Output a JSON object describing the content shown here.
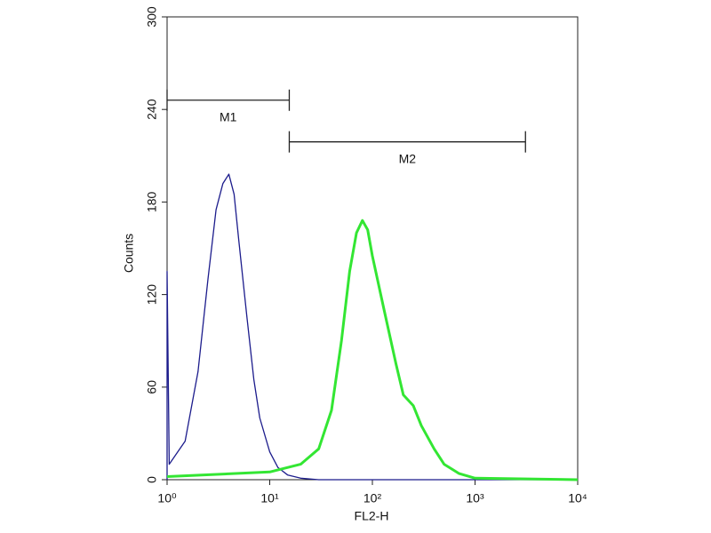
{
  "chart_data": {
    "type": "line",
    "xlabel": "FL2-H",
    "ylabel": "Counts",
    "xscale": "log",
    "xlim": [
      1,
      10000
    ],
    "ylim": [
      0,
      300
    ],
    "xticks": [
      {
        "value": 1,
        "label": "10⁰"
      },
      {
        "value": 10,
        "label": "10¹"
      },
      {
        "value": 100,
        "label": "10²"
      },
      {
        "value": 1000,
        "label": "10³"
      },
      {
        "value": 10000,
        "label": "10⁴"
      }
    ],
    "yticks": [
      0,
      60,
      120,
      180,
      240,
      300
    ],
    "series": [
      {
        "color": "#1c1c8c",
        "x": [
          1,
          1,
          1.05,
          1.5,
          2,
          2.5,
          3,
          3.5,
          4,
          4.5,
          5,
          6,
          7,
          8,
          10,
          12,
          15,
          20,
          30,
          100,
          10000
        ],
        "values": [
          0,
          135,
          10,
          25,
          70,
          130,
          175,
          192,
          198,
          185,
          155,
          105,
          65,
          40,
          18,
          8,
          3,
          1,
          0,
          0,
          0
        ]
      },
      {
        "color": "#33e633",
        "x": [
          1,
          10,
          20,
          30,
          40,
          50,
          60,
          70,
          80,
          90,
          100,
          130,
          170,
          200,
          250,
          300,
          400,
          500,
          700,
          1000,
          10000
        ],
        "values": [
          2,
          5,
          10,
          20,
          45,
          90,
          135,
          160,
          168,
          162,
          145,
          110,
          75,
          55,
          48,
          35,
          20,
          10,
          4,
          1,
          0
        ]
      }
    ],
    "markers": [
      {
        "label": "M1",
        "range": [
          1,
          15.5
        ],
        "y": 246
      },
      {
        "label": "M2",
        "range": [
          15.5,
          3100
        ],
        "y": 219
      }
    ]
  }
}
